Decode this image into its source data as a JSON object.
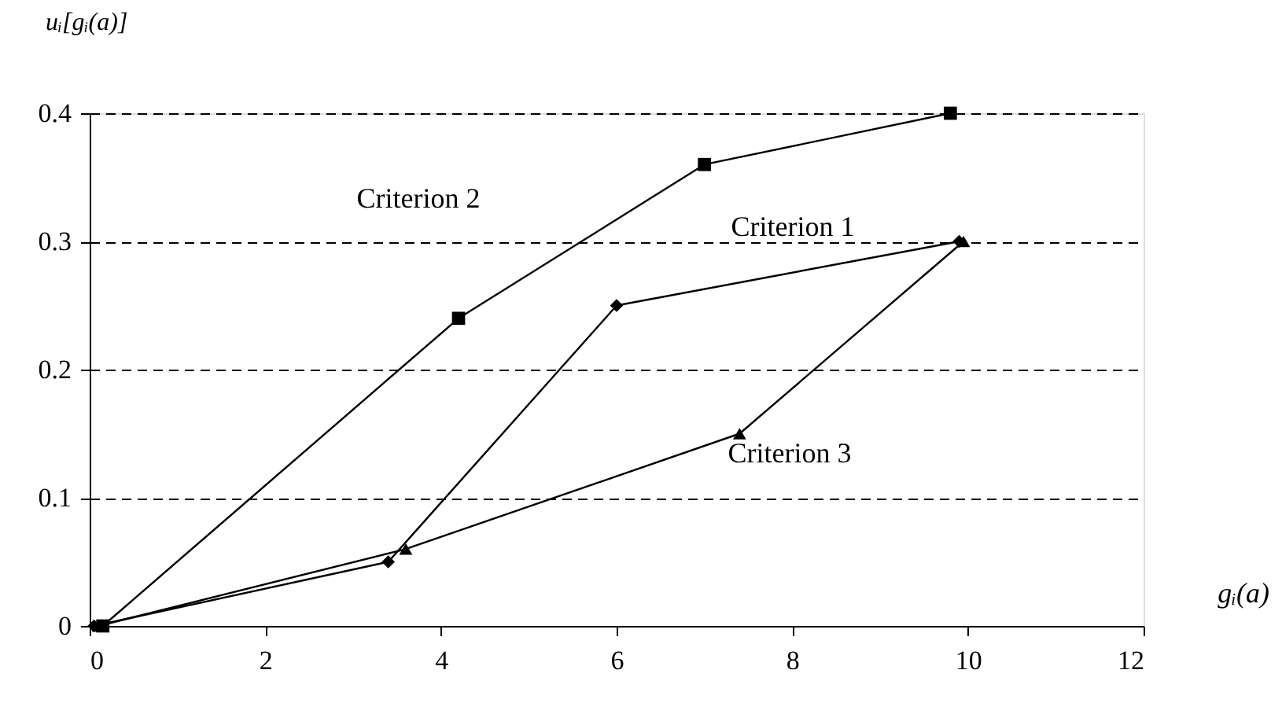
{
  "chart_data": {
    "type": "line",
    "xlabel": "gᵢ(a)",
    "ylabel": "uᵢ[gᵢ(a)]",
    "xlim": [
      0,
      12
    ],
    "xticks": [
      0,
      2,
      4,
      6,
      8,
      10,
      12
    ],
    "ylim": [
      0,
      0.4
    ],
    "yticks": [
      0,
      0.1,
      0.2,
      0.3,
      0.4
    ],
    "grid": "y",
    "line_style": "solid",
    "series": [
      {
        "color": "#000000",
        "marker": "diamond",
        "x": [
          0.05,
          3.4,
          6.0,
          9.9
        ],
        "values": [
          0,
          0.05,
          0.25,
          0.3
        ]
      },
      {
        "color": "#000000",
        "marker": "square",
        "x": [
          0.15,
          4.2,
          7.0,
          9.8
        ],
        "values": [
          0,
          0.24,
          0.36,
          0.4
        ]
      },
      {
        "color": "#000000",
        "marker": "triangle",
        "x": [
          0.1,
          3.6,
          7.4,
          9.95
        ],
        "values": [
          0,
          0.06,
          0.15,
          0.3
        ]
      }
    ],
    "annotations": [
      "Criterion 2",
      "Criterion 1",
      "Criterion 3"
    ]
  }
}
